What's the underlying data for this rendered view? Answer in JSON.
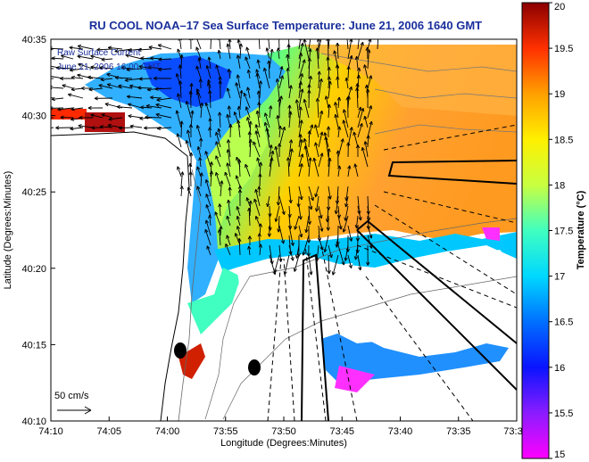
{
  "title": "RU COOL  NOAA–17  Sea Surface Temperature:  June 21, 2006 1640 GMT",
  "overlay": {
    "line1": "Raw Surface Current",
    "line2": "June 21, 2006 16:00 GMT"
  },
  "scale_bar": {
    "label": "50 cm/s"
  },
  "axes": {
    "xlabel": "Longitude (Degrees:Minutes)",
    "ylabel": "Latitude (Degrees:Minutes)",
    "x_ticks": [
      "74:10",
      "74:05",
      "74:00",
      "73:55",
      "73:50",
      "73:45",
      "73:40",
      "73:35",
      "73:3"
    ],
    "y_ticks": [
      "40:35",
      "40:30",
      "40:25",
      "40:20",
      "40:15",
      "40:10"
    ]
  },
  "colorbar": {
    "label": "Temperature (°C)",
    "range": [
      15,
      20
    ],
    "ticks": [
      "20",
      "19.5",
      "19",
      "18.5",
      "18",
      "17.5",
      "17",
      "16.5",
      "16",
      "15.5",
      "15"
    ]
  },
  "colors": {
    "title": "#1a2f9c",
    "land": "#ffffff",
    "cloud_mask": "#ffffff"
  }
}
